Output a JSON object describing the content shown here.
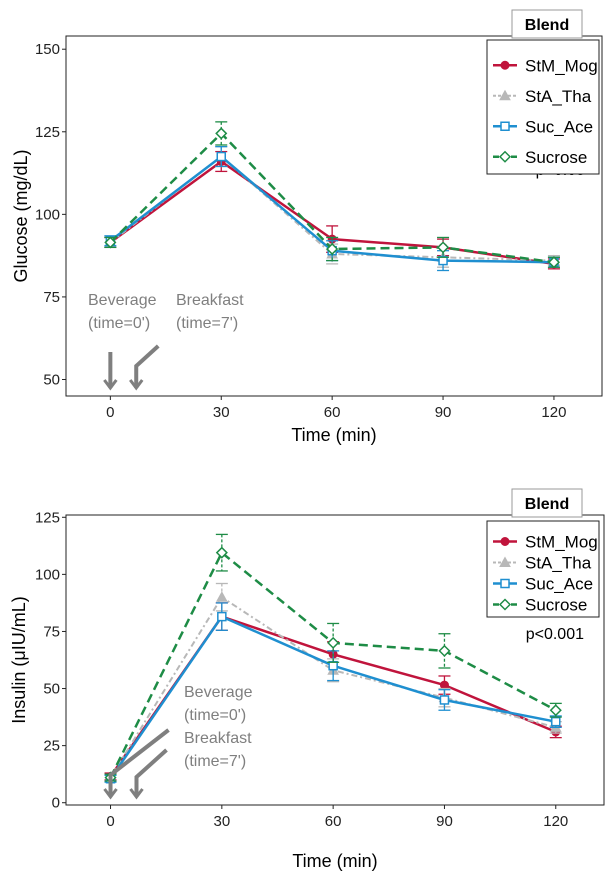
{
  "colors": {
    "StM_Mog": "#c0143c",
    "StA_Tha": "#b8b8b8",
    "Suc_Ace": "#1f8fd0",
    "Sucrose": "#1e8c46",
    "arrow": "#7f7f7f"
  },
  "chart_data": [
    {
      "type": "line",
      "title": "",
      "xlabel": "Time (min)",
      "ylabel": "Glucose (mg/dL)",
      "x": [
        0,
        30,
        60,
        90,
        120
      ],
      "xlim": [
        -12,
        133
      ],
      "ylim": [
        45,
        154
      ],
      "xticks": [
        0,
        30,
        60,
        90,
        120
      ],
      "yticks": [
        50,
        75,
        100,
        125,
        150
      ],
      "grid": false,
      "legend_title": "Blend",
      "legend_position": "top-right",
      "p_text": "p>0.05",
      "beverage_label": [
        "Beverage",
        "(time=0')"
      ],
      "breakfast_label": [
        "Breakfast",
        "(time=7')"
      ],
      "series": [
        {
          "name": "StM_Mog",
          "values": [
            91.5,
            116,
            92.5,
            90,
            85
          ],
          "err": [
            1.5,
            3,
            4,
            2.5,
            1.5
          ]
        },
        {
          "name": "StA_Tha",
          "values": [
            91.5,
            117.5,
            88,
            87,
            86
          ],
          "err": [
            1.5,
            3,
            3,
            3,
            1.5
          ]
        },
        {
          "name": "Suc_Ace",
          "values": [
            92,
            117.5,
            89,
            86,
            85.5
          ],
          "err": [
            1.5,
            3,
            3,
            3,
            1.5
          ]
        },
        {
          "name": "Sucrose",
          "values": [
            91.5,
            124.5,
            89.5,
            90,
            85.5
          ],
          "err": [
            1.5,
            3.5,
            3.5,
            3,
            1.5
          ]
        }
      ]
    },
    {
      "type": "line",
      "title": "",
      "xlabel": "Time (min)",
      "ylabel": "Insulin (μIU/mL)",
      "x": [
        0,
        30,
        60,
        90,
        120
      ],
      "xlim": [
        -12,
        133
      ],
      "ylim": [
        -1,
        126
      ],
      "xticks": [
        0,
        30,
        60,
        90,
        120
      ],
      "yticks": [
        0,
        25,
        50,
        75,
        100,
        125
      ],
      "grid": false,
      "legend_title": "Blend",
      "legend_position": "top-right",
      "p_text": "p<0.001",
      "beverage_label": [
        "Beverage",
        "(time=0')"
      ],
      "breakfast_label": [
        "Breakfast",
        "(time=7')"
      ],
      "series": [
        {
          "name": "StM_Mog",
          "values": [
            11.5,
            81.5,
            65,
            51.5,
            31
          ],
          "err": [
            1.5,
            6,
            5.5,
            4,
            2.5
          ]
        },
        {
          "name": "StA_Tha",
          "values": [
            11,
            90,
            58,
            46,
            33
          ],
          "err": [
            1.5,
            6,
            5,
            4,
            2.5
          ]
        },
        {
          "name": "Suc_Ace",
          "values": [
            10.5,
            81.5,
            60,
            45,
            35.5
          ],
          "err": [
            1.5,
            6,
            6.5,
            4.5,
            2.5
          ]
        },
        {
          "name": "Sucrose",
          "values": [
            11,
            109.5,
            70,
            66.5,
            40.5
          ],
          "err": [
            1.5,
            8,
            8.5,
            7.5,
            3
          ]
        }
      ]
    }
  ]
}
